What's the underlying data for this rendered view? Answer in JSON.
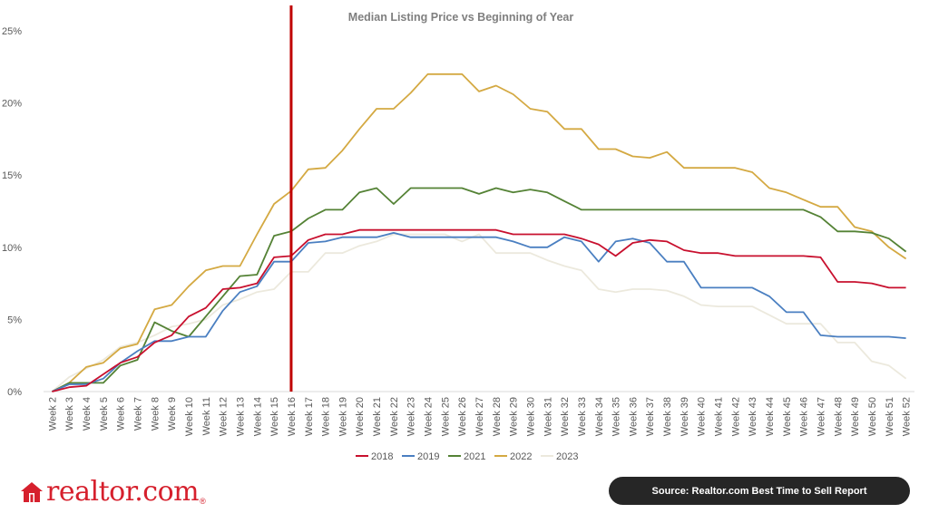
{
  "chart_data": {
    "type": "line",
    "title": "Median Listing Price vs Beginning of Year",
    "categories": [
      "Week 2",
      "Week 3",
      "Week 4",
      "Week 5",
      "Week 6",
      "Week 7",
      "Week 8",
      "Week 9",
      "Week 10",
      "Week 11",
      "Week 12",
      "Week 13",
      "Week 14",
      "Week 15",
      "Week 16",
      "Week 17",
      "Week 18",
      "Week 19",
      "Week 20",
      "Week 21",
      "Week 22",
      "Week 23",
      "Week 24",
      "Week 25",
      "Week 26",
      "Week 27",
      "Week 28",
      "Week 29",
      "Week 30",
      "Week 31",
      "Week 32",
      "Week 33",
      "Week 34",
      "Week 35",
      "Week 36",
      "Week 37",
      "Week 38",
      "Week 39",
      "Week 40",
      "Week 41",
      "Week 42",
      "Week 43",
      "Week 44",
      "Week 45",
      "Week 46",
      "Week 47",
      "Week 48",
      "Week 49",
      "Week 50",
      "Week 51",
      "Week 52"
    ],
    "ylim": [
      0,
      25
    ],
    "yticks": [
      "0%",
      "5%",
      "10%",
      "15%",
      "20%",
      "25%"
    ],
    "grid": false,
    "legend_position": "bottom",
    "marker_week": "Week 16",
    "marker_color": "#c00000",
    "series": [
      {
        "name": "2018",
        "color": "#c8102e",
        "values": [
          0,
          0.3,
          0.4,
          1.2,
          2.0,
          2.4,
          3.4,
          3.9,
          5.2,
          5.8,
          7.1,
          7.2,
          7.5,
          9.3,
          9.4,
          10.5,
          10.9,
          10.9,
          11.2,
          11.2,
          11.2,
          11.2,
          11.2,
          11.2,
          11.2,
          11.2,
          11.2,
          10.9,
          10.9,
          10.9,
          10.9,
          10.6,
          10.2,
          9.4,
          10.3,
          10.5,
          10.4,
          9.8,
          9.6,
          9.6,
          9.4,
          9.4,
          9.4,
          9.4,
          9.4,
          9.3,
          7.6,
          7.6,
          7.5,
          7.2,
          7.2
        ]
      },
      {
        "name": "2019",
        "color": "#4a7fc1",
        "values": [
          0,
          0.5,
          0.5,
          0.9,
          2.0,
          2.8,
          3.5,
          3.5,
          3.8,
          3.8,
          5.6,
          6.9,
          7.3,
          9.0,
          9.0,
          10.3,
          10.4,
          10.7,
          10.7,
          10.7,
          11.0,
          10.7,
          10.7,
          10.7,
          10.7,
          10.7,
          10.7,
          10.4,
          10.0,
          10.0,
          10.7,
          10.4,
          9.0,
          10.4,
          10.6,
          10.3,
          9.0,
          9.0,
          7.2,
          7.2,
          7.2,
          7.2,
          6.6,
          5.5,
          5.5,
          3.9,
          3.8,
          3.8,
          3.8,
          3.8,
          3.7
        ]
      },
      {
        "name": "2021",
        "color": "#548235",
        "values": [
          0,
          0.6,
          0.6,
          0.6,
          1.8,
          2.2,
          4.8,
          4.2,
          3.8,
          5.2,
          6.6,
          8.0,
          8.1,
          10.8,
          11.1,
          12.0,
          12.6,
          12.6,
          13.8,
          14.1,
          13.0,
          14.1,
          14.1,
          14.1,
          14.1,
          13.7,
          14.1,
          13.8,
          14.0,
          13.8,
          13.2,
          12.6,
          12.6,
          12.6,
          12.6,
          12.6,
          12.6,
          12.6,
          12.6,
          12.6,
          12.6,
          12.6,
          12.6,
          12.6,
          12.6,
          12.1,
          11.1,
          11.1,
          11.0,
          10.6,
          9.7
        ]
      },
      {
        "name": "2022",
        "color": "#d4a942",
        "values": [
          0,
          0.6,
          1.7,
          2.0,
          3.0,
          3.3,
          5.7,
          6.0,
          7.3,
          8.4,
          8.7,
          8.7,
          10.9,
          13.0,
          13.9,
          15.4,
          15.5,
          16.7,
          18.2,
          19.6,
          19.6,
          20.7,
          22.0,
          22.0,
          22.0,
          20.8,
          21.2,
          20.6,
          19.6,
          19.4,
          18.2,
          18.2,
          16.8,
          16.8,
          16.3,
          16.2,
          16.6,
          15.5,
          15.5,
          15.5,
          15.5,
          15.2,
          14.1,
          13.8,
          13.3,
          12.8,
          12.8,
          11.4,
          11.1,
          10.0,
          9.2
        ]
      },
      {
        "name": "2023",
        "color": "#ece9dd",
        "values": [
          0,
          1.0,
          1.6,
          2.2,
          3.1,
          3.4,
          3.9,
          4.5,
          4.7,
          5.0,
          6.0,
          6.4,
          6.9,
          7.1,
          8.3,
          8.3,
          9.6,
          9.6,
          10.1,
          10.4,
          10.9,
          10.9,
          10.9,
          10.9,
          10.4,
          10.9,
          9.6,
          9.6,
          9.6,
          9.1,
          8.7,
          8.4,
          7.1,
          6.9,
          7.1,
          7.1,
          7.0,
          6.6,
          6.0,
          5.9,
          5.9,
          5.9,
          5.3,
          4.7,
          4.7,
          4.7,
          3.4,
          3.4,
          2.1,
          1.8,
          0.9
        ]
      }
    ]
  },
  "branding": {
    "logo_text": "realtor.com",
    "logo_mark": "®",
    "logo_icon": "house-icon",
    "brand_color": "#d6202d"
  },
  "source": {
    "label": "Source: Realtor.com Best Time to Sell Report"
  }
}
